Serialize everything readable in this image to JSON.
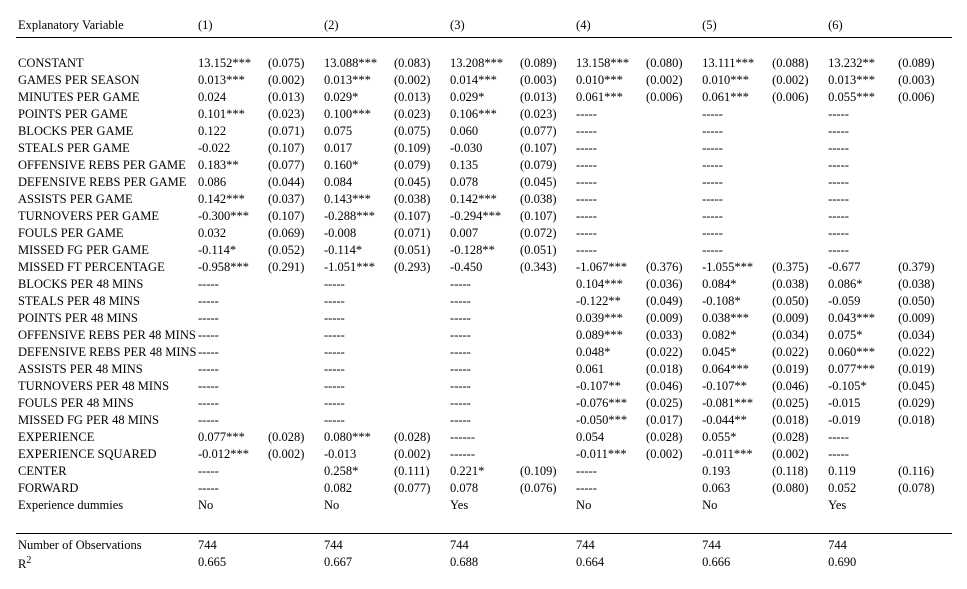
{
  "table": {
    "header_label": "Explanatory Variable",
    "model_headers": [
      "(1)",
      "(2)",
      "(3)",
      "(4)",
      "(5)",
      "(6)"
    ],
    "dash": "-----",
    "rows": [
      {
        "label": "CONSTANT",
        "m1": {
          "coef": "13.152***",
          "se": "(0.075)"
        },
        "m2": {
          "coef": "13.088***",
          "se": "(0.083)"
        },
        "m3": {
          "coef": "13.208***",
          "se": "(0.089)"
        },
        "m4": {
          "coef": "13.158***",
          "se": "(0.080)"
        },
        "m5": {
          "coef": "13.111***",
          "se": "(0.088)"
        },
        "m6": {
          "coef": "13.232**",
          "se": "(0.089)"
        }
      },
      {
        "label": "GAMES PER SEASON",
        "m1": {
          "coef": "0.013***",
          "se": "(0.002)"
        },
        "m2": {
          "coef": "0.013***",
          "se": "(0.002)"
        },
        "m3": {
          "coef": "0.014***",
          "se": "(0.003)"
        },
        "m4": {
          "coef": "0.010***",
          "se": "(0.002)"
        },
        "m5": {
          "coef": "0.010***",
          "se": "(0.002)"
        },
        "m6": {
          "coef": "0.013***",
          "se": "(0.003)"
        }
      },
      {
        "label": "MINUTES PER GAME",
        "m1": {
          "coef": "0.024",
          "se": "(0.013)"
        },
        "m2": {
          "coef": "0.029*",
          "se": "(0.013)"
        },
        "m3": {
          "coef": "0.029*",
          "se": "(0.013)"
        },
        "m4": {
          "coef": "0.061***",
          "se": "(0.006)"
        },
        "m5": {
          "coef": "0.061***",
          "se": "(0.006)"
        },
        "m6": {
          "coef": "0.055***",
          "se": "(0.006)"
        }
      },
      {
        "label": "POINTS PER GAME",
        "m1": {
          "coef": "0.101***",
          "se": "(0.023)"
        },
        "m2": {
          "coef": "0.100***",
          "se": "(0.023)"
        },
        "m3": {
          "coef": "0.106***",
          "se": "(0.023)"
        },
        "m4": null,
        "m5": null,
        "m6": null
      },
      {
        "label": "BLOCKS PER GAME",
        "m1": {
          "coef": "0.122",
          "se": "(0.071)"
        },
        "m2": {
          "coef": "0.075",
          "se": "(0.075)"
        },
        "m3": {
          "coef": "0.060",
          "se": "(0.077)"
        },
        "m4": null,
        "m5": null,
        "m6": null
      },
      {
        "label": "STEALS PER GAME",
        "m1": {
          "coef": "-0.022",
          "se": "(0.107)"
        },
        "m2": {
          "coef": "0.017",
          "se": "(0.109)"
        },
        "m3": {
          "coef": "-0.030",
          "se": "(0.107)"
        },
        "m4": null,
        "m5": null,
        "m6": null
      },
      {
        "label": "OFFENSIVE REBS PER GAME",
        "m1": {
          "coef": "0.183**",
          "se": "(0.077)"
        },
        "m2": {
          "coef": "0.160*",
          "se": "(0.079)"
        },
        "m3": {
          "coef": "0.135",
          "se": "(0.079)"
        },
        "m4": null,
        "m5": null,
        "m6": null
      },
      {
        "label": "DEFENSIVE REBS PER GAME",
        "m1": {
          "coef": "0.086",
          "se": "(0.044)"
        },
        "m2": {
          "coef": "0.084",
          "se": "(0.045)"
        },
        "m3": {
          "coef": "0.078",
          "se": "(0.045)"
        },
        "m4": null,
        "m5": null,
        "m6": null
      },
      {
        "label": "ASSISTS PER GAME",
        "m1": {
          "coef": "0.142***",
          "se": "(0.037)"
        },
        "m2": {
          "coef": "0.143***",
          "se": "(0.038)"
        },
        "m3": {
          "coef": "0.142***",
          "se": "(0.038)"
        },
        "m4": null,
        "m5": null,
        "m6": null
      },
      {
        "label": "TURNOVERS PER GAME",
        "m1": {
          "coef": "-0.300***",
          "se": "(0.107)"
        },
        "m2": {
          "coef": "-0.288***",
          "se": "(0.107)"
        },
        "m3": {
          "coef": "-0.294***",
          "se": "(0.107)"
        },
        "m4": null,
        "m5": null,
        "m6": null
      },
      {
        "label": "FOULS PER GAME",
        "m1": {
          "coef": "0.032",
          "se": "(0.069)"
        },
        "m2": {
          "coef": "-0.008",
          "se": "(0.071)"
        },
        "m3": {
          "coef": "0.007",
          "se": "(0.072)"
        },
        "m4": null,
        "m5": null,
        "m6": null
      },
      {
        "label": "MISSED FG PER GAME",
        "m1": {
          "coef": "-0.114*",
          "se": "(0.052)"
        },
        "m2": {
          "coef": "-0.114*",
          "se": "(0.051)"
        },
        "m3": {
          "coef": "-0.128**",
          "se": "(0.051)"
        },
        "m4": null,
        "m5": null,
        "m6": null
      },
      {
        "label": "MISSED FT PERCENTAGE",
        "m1": {
          "coef": "-0.958***",
          "se": "(0.291)"
        },
        "m2": {
          "coef": "-1.051***",
          "se": "(0.293)"
        },
        "m3": {
          "coef": "-0.450",
          "se": "(0.343)"
        },
        "m4": {
          "coef": "-1.067***",
          "se": "(0.376)"
        },
        "m5": {
          "coef": "-1.055***",
          "se": "(0.375)"
        },
        "m6": {
          "coef": "-0.677",
          "se": "(0.379)"
        }
      },
      {
        "label": "BLOCKS PER 48 MINS",
        "m1": null,
        "m2": null,
        "m3": null,
        "m4": {
          "coef": "0.104***",
          "se": "(0.036)"
        },
        "m5": {
          "coef": "0.084*",
          "se": "(0.038)"
        },
        "m6": {
          "coef": "0.086*",
          "se": "(0.038)"
        }
      },
      {
        "label": "STEALS PER 48 MINS",
        "m1": null,
        "m2": null,
        "m3": null,
        "m4": {
          "coef": "-0.122**",
          "se": "(0.049)"
        },
        "m5": {
          "coef": "-0.108*",
          "se": "(0.050)"
        },
        "m6": {
          "coef": "-0.059",
          "se": "(0.050)"
        }
      },
      {
        "label": "POINTS PER 48 MINS",
        "m1": null,
        "m2": null,
        "m3": null,
        "m4": {
          "coef": "0.039***",
          "se": "(0.009)"
        },
        "m5": {
          "coef": "0.038***",
          "se": "(0.009)"
        },
        "m6": {
          "coef": "0.043***",
          "se": "(0.009)"
        }
      },
      {
        "label": "OFFENSIVE REBS PER 48 MINS",
        "m1": null,
        "m2": null,
        "m3": null,
        "m4": {
          "coef": "0.089***",
          "se": "(0.033)"
        },
        "m5": {
          "coef": "0.082*",
          "se": "(0.034)"
        },
        "m6": {
          "coef": "0.075*",
          "se": "(0.034)"
        }
      },
      {
        "label": "DEFENSIVE REBS PER 48 MINS",
        "m1": null,
        "m2": null,
        "m3": null,
        "m4": {
          "coef": "0.048*",
          "se": "(0.022)"
        },
        "m5": {
          "coef": "0.045*",
          "se": "(0.022)"
        },
        "m6": {
          "coef": "0.060***",
          "se": "(0.022)"
        }
      },
      {
        "label": "ASSISTS PER 48 MINS",
        "m1": null,
        "m2": null,
        "m3": null,
        "m4": {
          "coef": "0.061",
          "se": "(0.018)"
        },
        "m5": {
          "coef": "0.064***",
          "se": "(0.019)"
        },
        "m6": {
          "coef": "0.077***",
          "se": "(0.019)"
        }
      },
      {
        "label": "TURNOVERS PER 48 MINS",
        "m1": null,
        "m2": null,
        "m3": null,
        "m4": {
          "coef": "-0.107**",
          "se": "(0.046)"
        },
        "m5": {
          "coef": "-0.107**",
          "se": "(0.046)"
        },
        "m6": {
          "coef": "-0.105*",
          "se": "(0.045)"
        }
      },
      {
        "label": "FOULS PER 48 MINS",
        "m1": null,
        "m2": null,
        "m3": null,
        "m4": {
          "coef": "-0.076***",
          "se": "(0.025)"
        },
        "m5": {
          "coef": "-0.081***",
          "se": "(0.025)"
        },
        "m6": {
          "coef": "-0.015",
          "se": "(0.029)"
        }
      },
      {
        "label": "MISSED FG PER 48 MINS",
        "m1": null,
        "m2": null,
        "m3": null,
        "m4": {
          "coef": "-0.050***",
          "se": "(0.017)"
        },
        "m5": {
          "coef": "-0.044**",
          "se": "(0.018)"
        },
        "m6": {
          "coef": "-0.019",
          "se": "(0.018)"
        }
      },
      {
        "label": "EXPERIENCE",
        "m1": {
          "coef": "0.077***",
          "se": "(0.028)"
        },
        "m2": {
          "coef": "0.080***",
          "se": "(0.028)"
        },
        "m3": {
          "coef": "------",
          "se": ""
        },
        "m4": {
          "coef": "0.054",
          "se": "(0.028)"
        },
        "m5": {
          "coef": "0.055*",
          "se": "(0.028)"
        },
        "m6": null
      },
      {
        "label": "EXPERIENCE SQUARED",
        "m1": {
          "coef": "-0.012***",
          "se": "(0.002)"
        },
        "m2": {
          "coef": "-0.013",
          "se": "(0.002)"
        },
        "m3": {
          "coef": "------",
          "se": ""
        },
        "m4": {
          "coef": "-0.011***",
          "se": "(0.002)"
        },
        "m5": {
          "coef": "-0.011***",
          "se": "(0.002)"
        },
        "m6": null
      },
      {
        "label": "CENTER",
        "m1": null,
        "m2": {
          "coef": "0.258*",
          "se": "(0.111)"
        },
        "m3": {
          "coef": "0.221*",
          "se": "(0.109)"
        },
        "m4": null,
        "m5": {
          "coef": "0.193",
          "se": "(0.118)"
        },
        "m6": {
          "coef": "0.119",
          "se": "(0.116)"
        }
      },
      {
        "label": "FORWARD",
        "m1": null,
        "m2": {
          "coef": "0.082",
          "se": "(0.077)"
        },
        "m3": {
          "coef": "0.078",
          "se": "(0.076)"
        },
        "m4": null,
        "m5": {
          "coef": "0.063",
          "se": "(0.080)"
        },
        "m6": {
          "coef": "0.052",
          "se": "(0.078)"
        }
      },
      {
        "label": "Experience dummies",
        "m1": {
          "coef": "No",
          "se": ""
        },
        "m2": {
          "coef": "No",
          "se": ""
        },
        "m3": {
          "coef": "Yes",
          "se": ""
        },
        "m4": {
          "coef": "No",
          "se": ""
        },
        "m5": {
          "coef": "No",
          "se": ""
        },
        "m6": {
          "coef": "Yes",
          "se": ""
        }
      }
    ],
    "footer": [
      {
        "label": "Number of Observations",
        "vals": [
          "744",
          "744",
          "744",
          "744",
          "744",
          "744"
        ]
      },
      {
        "label_html": "R<span class=\"sup\">2</span>",
        "vals": [
          "0.665",
          "0.667",
          "0.688",
          "0.664",
          "0.666",
          "0.690"
        ]
      }
    ]
  }
}
